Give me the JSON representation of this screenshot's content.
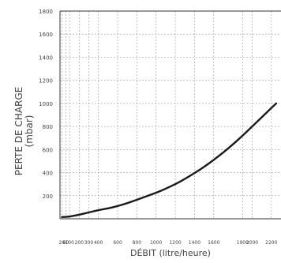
{
  "chart_data": {
    "type": "line",
    "title": "",
    "xlabel": "DÉBIT (litre/heure)",
    "ylabel_line1": "PERTE DE CHARGE",
    "ylabel_line2": "(mbar)",
    "x_ticks": [
      20,
      60,
      100,
      200,
      300,
      400,
      600,
      800,
      1000,
      1200,
      1400,
      1600,
      1900,
      2000,
      2200
    ],
    "y_ticks": [
      200,
      400,
      600,
      800,
      1000,
      1200,
      1400,
      1600,
      1800
    ],
    "xlim": [
      0,
      2300
    ],
    "ylim": [
      0,
      1800
    ],
    "grid": true,
    "series": [
      {
        "x": [
          20,
          100,
          200,
          300,
          400,
          500,
          600,
          700,
          800,
          900,
          1000,
          1100,
          1200,
          1300,
          1400,
          1500,
          1600,
          1700,
          1800,
          1900,
          2000,
          2100,
          2200,
          2250
        ],
        "values": [
          15,
          18,
          35,
          55,
          75,
          90,
          110,
          135,
          165,
          195,
          225,
          260,
          300,
          345,
          395,
          450,
          510,
          575,
          645,
          720,
          800,
          880,
          960,
          1000
        ]
      }
    ]
  }
}
